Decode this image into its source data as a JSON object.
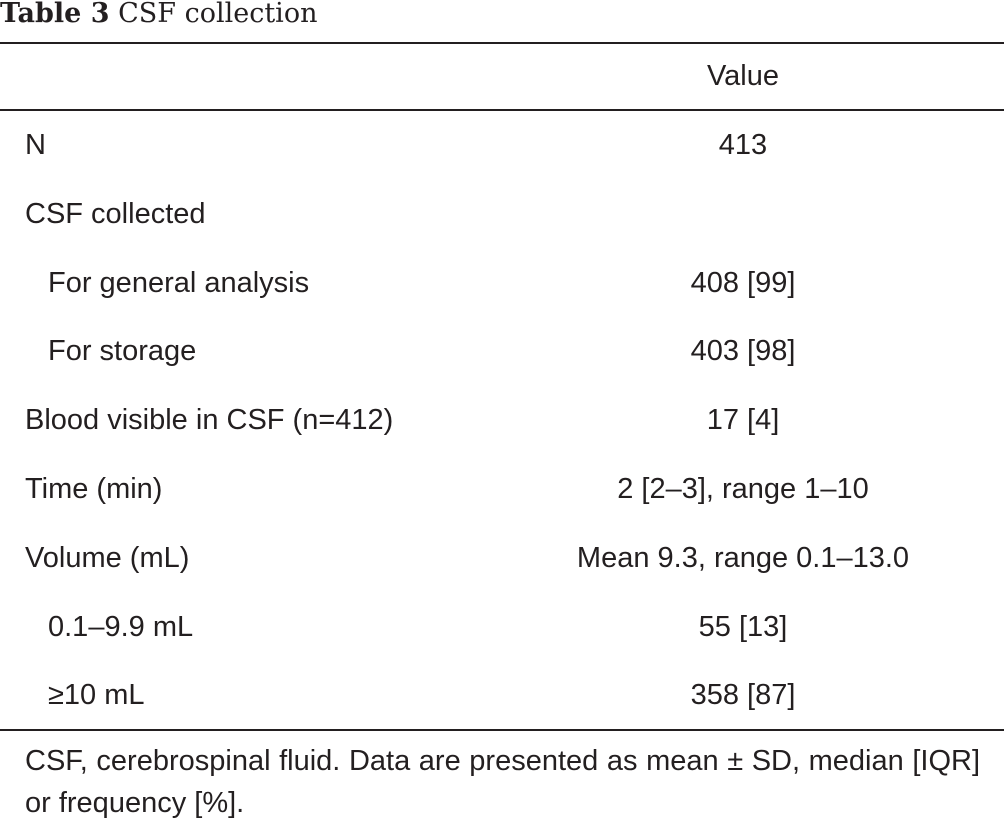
{
  "table": {
    "title_label": "Table 3",
    "title_text": "CSF collection",
    "header": {
      "label_col": "",
      "value_col": "Value"
    },
    "rows": [
      {
        "label": "N",
        "value": "413",
        "indent": false
      },
      {
        "label": "CSF collected",
        "value": "",
        "indent": false
      },
      {
        "label": "For general analysis",
        "value": "408 [99]",
        "indent": true
      },
      {
        "label": "For storage",
        "value": "403 [98]",
        "indent": true
      },
      {
        "label": "Blood visible in CSF (n=412)",
        "value": "17 [4]",
        "indent": false
      },
      {
        "label": "Time (min)",
        "value": "2 [2–3], range 1–10",
        "indent": false
      },
      {
        "label": "Volume (mL)",
        "value": "Mean 9.3, range 0.1–13.0",
        "indent": false
      },
      {
        "label": "0.1–9.9 mL",
        "value": "55 [13]",
        "indent": true
      },
      {
        "label": "≥10 mL",
        "value": "358 [87]",
        "indent": true
      }
    ],
    "footnote": "CSF, cerebrospinal fluid. Data are presented as mean ± SD, median [IQR] or frequency [%]."
  }
}
